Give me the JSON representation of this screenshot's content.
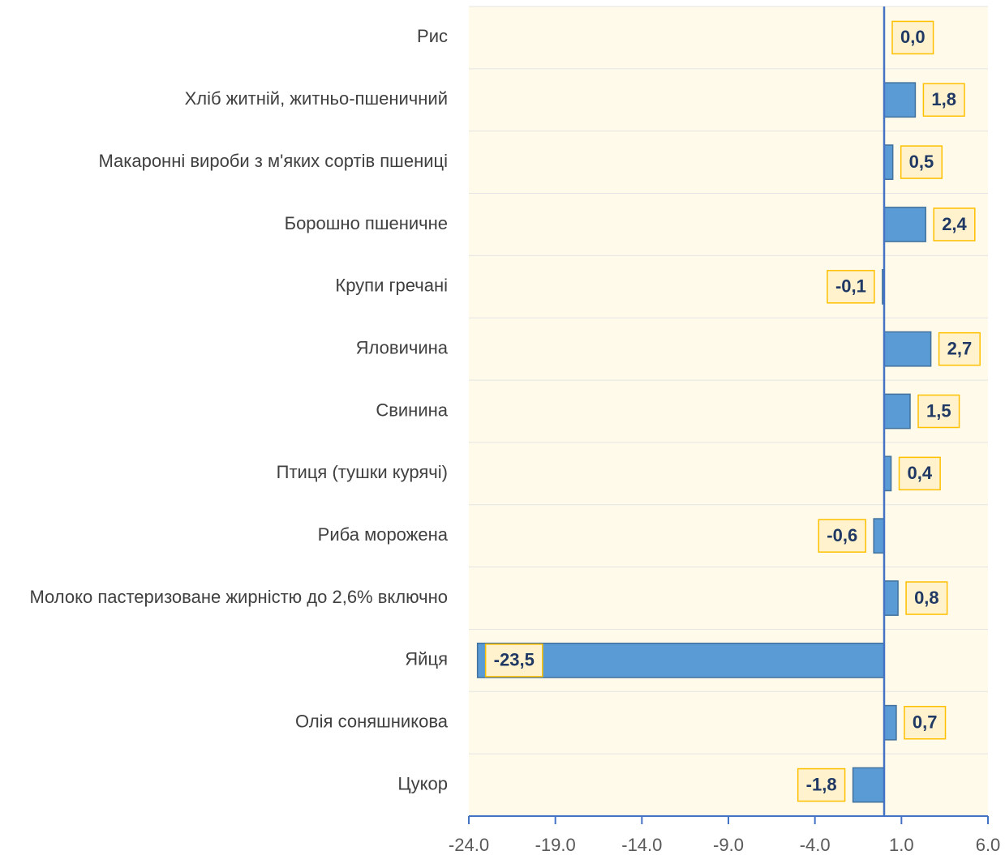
{
  "chart_data": {
    "type": "bar",
    "orientation": "horizontal",
    "categories": [
      "Рис",
      "Хліб житній, житньо-пшеничний",
      "Макаронні вироби з м'яких сортів пшениці",
      "Борошно пшеничне",
      "Крупи гречані",
      "Яловичина",
      "Свинина",
      "Птиця (тушки курячі)",
      "Риба морожена",
      "Молоко пастеризоване жирністю до 2,6% включно",
      "Яйця",
      "Олія соняшникова",
      "Цукор"
    ],
    "values": [
      0.0,
      1.8,
      0.5,
      2.4,
      -0.1,
      2.7,
      1.5,
      0.4,
      -0.6,
      0.8,
      -23.5,
      0.7,
      -1.8
    ],
    "value_labels": [
      "0,0",
      "1,8",
      "0,5",
      "2,4",
      "-0,1",
      "2,7",
      "1,5",
      "0,4",
      "-0,6",
      "0,8",
      "-23,5",
      "0,7",
      "-1,8"
    ],
    "color": "#5b9bd5",
    "xlim": [
      -24,
      6
    ],
    "xticks": [
      {
        "value": -24,
        "label": "-24.0"
      },
      {
        "value": -19,
        "label": "-19.0"
      },
      {
        "value": -14,
        "label": "-14.0"
      },
      {
        "value": -9,
        "label": "-9.0"
      },
      {
        "value": -4,
        "label": "-4.0"
      },
      {
        "value": 1,
        "label": "1.0"
      },
      {
        "value": 6,
        "label": "6.0"
      }
    ],
    "grid": false
  }
}
